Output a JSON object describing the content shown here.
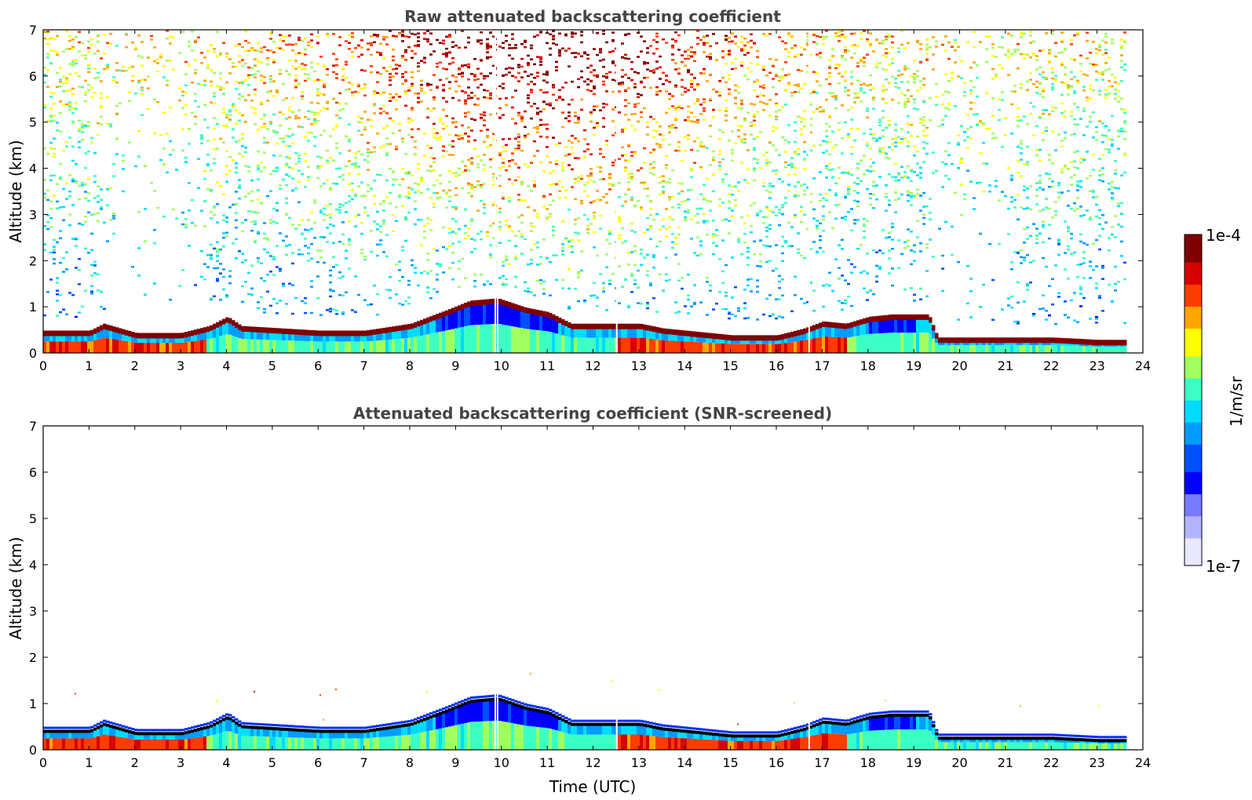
{
  "colors": {
    "axis": "#000000",
    "title": "#444444",
    "colormap": [
      "#e8e8ff",
      "#b3b3ff",
      "#7a7aff",
      "#0000ff",
      "#0050ff",
      "#009cff",
      "#00dcff",
      "#3cffc3",
      "#a0ff5f",
      "#ffff00",
      "#ffa500",
      "#ff3c00",
      "#d80000",
      "#800000"
    ]
  },
  "chart_data": [
    {
      "type": "heatmap",
      "title": "Raw attenuated backscattering coefficient",
      "xlabel": "",
      "ylabel": "Altitude (km)",
      "xlim": [
        0,
        24
      ],
      "ylim": [
        0,
        7
      ],
      "xticks": [
        "0",
        "1",
        "2",
        "3",
        "4",
        "5",
        "6",
        "7",
        "8",
        "9",
        "10",
        "11",
        "12",
        "13",
        "14",
        "15",
        "16",
        "17",
        "18",
        "19",
        "20",
        "21",
        "22",
        "23",
        "24"
      ],
      "yticks": [
        "0",
        "1",
        "2",
        "3",
        "4",
        "5",
        "6",
        "7"
      ],
      "data_end_time": 23.65,
      "boundary_layer_top_km": [
        [
          0,
          0.45
        ],
        [
          1,
          0.45
        ],
        [
          1.3,
          0.6
        ],
        [
          2,
          0.4
        ],
        [
          3,
          0.4
        ],
        [
          3.6,
          0.55
        ],
        [
          4,
          0.75
        ],
        [
          4.3,
          0.55
        ],
        [
          6,
          0.45
        ],
        [
          7,
          0.45
        ],
        [
          8,
          0.6
        ],
        [
          8.8,
          0.9
        ],
        [
          9.3,
          1.1
        ],
        [
          9.9,
          1.15
        ],
        [
          10.5,
          0.95
        ],
        [
          11,
          0.85
        ],
        [
          11.5,
          0.6
        ],
        [
          12,
          0.6
        ],
        [
          12.5,
          0.6
        ],
        [
          13,
          0.6
        ],
        [
          13.5,
          0.5
        ],
        [
          14,
          0.45
        ],
        [
          15,
          0.35
        ],
        [
          16,
          0.35
        ],
        [
          16.6,
          0.5
        ],
        [
          17,
          0.65
        ],
        [
          17.5,
          0.6
        ],
        [
          18,
          0.75
        ],
        [
          18.5,
          0.8
        ],
        [
          19.3,
          0.8
        ],
        [
          19.5,
          0.3
        ],
        [
          20,
          0.3
        ],
        [
          21,
          0.3
        ],
        [
          22,
          0.3
        ],
        [
          23,
          0.25
        ],
        [
          23.65,
          0.25
        ]
      ],
      "white_gaps_hours": [
        9.85,
        9.9,
        12.5,
        16.7
      ]
    },
    {
      "type": "heatmap",
      "title": "Attenuated backscattering coefficient (SNR-screened)",
      "xlabel": "Time (UTC)",
      "ylabel": "Altitude (km)",
      "xlim": [
        0,
        24
      ],
      "ylim": [
        0,
        7
      ],
      "xticks": [
        "0",
        "1",
        "2",
        "3",
        "4",
        "5",
        "6",
        "7",
        "8",
        "9",
        "10",
        "11",
        "12",
        "13",
        "14",
        "15",
        "16",
        "17",
        "18",
        "19",
        "20",
        "21",
        "22",
        "23",
        "24"
      ],
      "yticks": [
        "0",
        "1",
        "2",
        "3",
        "4",
        "5",
        "6",
        "7"
      ],
      "data_end_time": 23.65
    }
  ],
  "colorbar": {
    "label": "1/m/sr",
    "max_label": "1e-4",
    "min_label": "1e-7",
    "scale": "log",
    "range": [
      1e-07,
      0.0001
    ]
  }
}
